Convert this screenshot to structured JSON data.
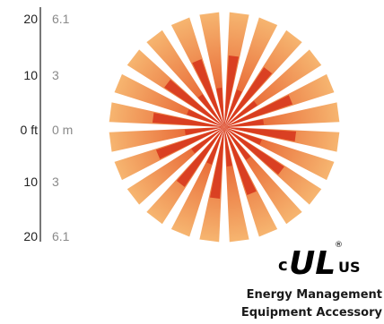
{
  "scale": {
    "rows": [
      {
        "ft": "20",
        "m": "6.1"
      },
      {
        "ft": "10",
        "m": "3"
      },
      {
        "ft": "0 ft",
        "m": "0 m"
      },
      {
        "ft": "10",
        "m": "3"
      },
      {
        "ft": "20",
        "m": "6.1"
      }
    ]
  },
  "pattern": {
    "ray_count": 24,
    "colors": {
      "outer_start": "#e34a1e",
      "outer_end": "#f6b570",
      "inner": "#d7391e"
    }
  },
  "certification": {
    "mark_left": "c",
    "mark_center": "UL",
    "mark_right": "US",
    "registered": "®"
  },
  "caption": {
    "line1": "Energy Management",
    "line2": "Equipment Accessory"
  }
}
